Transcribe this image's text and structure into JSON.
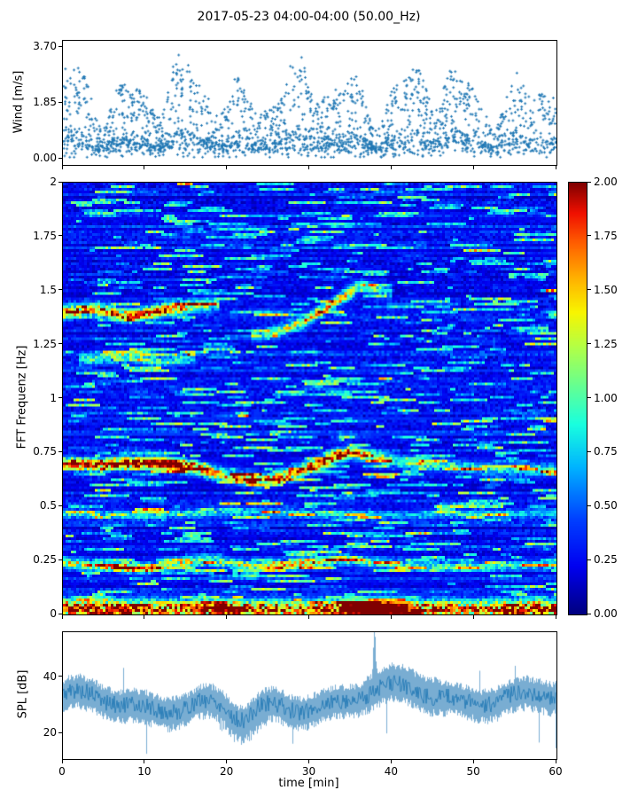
{
  "title": "2017-05-23 04:00-04:00 (50.00_Hz)",
  "chart_data": [
    {
      "type": "scatter",
      "name": "wind-speed",
      "ylabel": "Wind [m/s]",
      "ylim": [
        0,
        3.7
      ],
      "xlim": [
        0,
        60
      ],
      "yticks": [
        {
          "v": 0,
          "label": "0.00"
        },
        {
          "v": 1.85,
          "label": "1.85"
        },
        {
          "v": 3.7,
          "label": "3.70"
        }
      ],
      "marker": "star",
      "color": "#1f77b4",
      "n_points": 2300,
      "description": "Wind speed scatter 0-3.7 m/s over 60 min, bursty clusters up to ~3.6 m/s with calmer gaps, dense band below ~1 m/s"
    },
    {
      "type": "heatmap",
      "name": "fft-spectrogram",
      "ylabel": "FFT Frequenz [Hz]",
      "ylim": [
        0,
        2
      ],
      "xlim": [
        0,
        60
      ],
      "yticks": [
        {
          "v": 2,
          "label": "2"
        },
        {
          "v": 1.75,
          "label": "1.75"
        },
        {
          "v": 1.5,
          "label": "1.5"
        },
        {
          "v": 1.25,
          "label": "1.25"
        },
        {
          "v": 1,
          "label": "1"
        },
        {
          "v": 0.75,
          "label": "0.75"
        },
        {
          "v": 0.5,
          "label": "0.5"
        },
        {
          "v": 0.25,
          "label": "0.25"
        },
        {
          "v": 0,
          "label": "0"
        }
      ],
      "colorbar": {
        "vmin": 0,
        "vmax": 2,
        "colormap": "jet",
        "ticks": [
          {
            "v": 2,
            "label": "2.00"
          },
          {
            "v": 1.75,
            "label": "1.75"
          },
          {
            "v": 1.5,
            "label": "1.50"
          },
          {
            "v": 1.25,
            "label": "1.25"
          },
          {
            "v": 1,
            "label": "1.00"
          },
          {
            "v": 0.75,
            "label": "0.75"
          },
          {
            "v": 0.5,
            "label": "0.50"
          },
          {
            "v": 0.25,
            "label": "0.25"
          },
          {
            "v": 0,
            "label": "0.00"
          }
        ],
        "stops": [
          [
            0.0,
            "#000080"
          ],
          [
            0.11,
            "#0000f0"
          ],
          [
            0.22,
            "#0040ff"
          ],
          [
            0.34,
            "#00b3ff"
          ],
          [
            0.44,
            "#19ffdf"
          ],
          [
            0.53,
            "#66ff91"
          ],
          [
            0.62,
            "#b3ff46"
          ],
          [
            0.7,
            "#f8f500"
          ],
          [
            0.78,
            "#ffb000"
          ],
          [
            0.86,
            "#ff5f00"
          ],
          [
            0.93,
            "#f01000"
          ],
          [
            1.0,
            "#800000"
          ]
        ]
      },
      "background_level": 0.25,
      "streak_count": 1150,
      "bands": [
        {
          "name": "surface-low-band",
          "sigma": 0.03,
          "trange": [
            0,
            60
          ],
          "center": [
            [
              0,
              0.025
            ],
            [
              60,
              0.025
            ]
          ],
          "intensity": [
            [
              0,
              1.9
            ],
            [
              8,
              1.7
            ],
            [
              15,
              1.5
            ],
            [
              19,
              2.1
            ],
            [
              23,
              1.6
            ],
            [
              30,
              1.5
            ],
            [
              36,
              2.3
            ],
            [
              38,
              2.6
            ],
            [
              41,
              2.4
            ],
            [
              43,
              1.6
            ],
            [
              50,
              1.5
            ],
            [
              55,
              1.8
            ],
            [
              60,
              1.9
            ]
          ]
        },
        {
          "name": "main-band-0.7Hz",
          "sigma": 0.02,
          "trange": [
            0,
            60
          ],
          "center": [
            [
              0,
              0.7
            ],
            [
              4,
              0.69
            ],
            [
              8,
              0.7
            ],
            [
              12,
              0.7
            ],
            [
              16,
              0.68
            ],
            [
              20,
              0.64
            ],
            [
              24,
              0.62
            ],
            [
              27,
              0.64
            ],
            [
              30,
              0.68
            ],
            [
              33,
              0.73
            ],
            [
              35,
              0.75
            ],
            [
              38,
              0.73
            ],
            [
              42,
              0.7
            ],
            [
              46,
              0.69
            ],
            [
              52,
              0.67
            ],
            [
              60,
              0.67
            ]
          ],
          "intensity": [
            [
              0,
              1.9
            ],
            [
              6,
              1.8
            ],
            [
              10,
              2.0
            ],
            [
              14,
              2.1
            ],
            [
              17,
              1.6
            ],
            [
              20,
              1.2
            ],
            [
              24,
              1.3
            ],
            [
              28,
              1.5
            ],
            [
              31,
              1.7
            ],
            [
              34,
              1.8
            ],
            [
              37,
              1.2
            ],
            [
              40,
              0.9
            ],
            [
              45,
              0.8
            ],
            [
              50,
              0.7
            ],
            [
              55,
              0.7
            ],
            [
              60,
              0.8
            ]
          ]
        },
        {
          "name": "band-0.23Hz",
          "sigma": 0.016,
          "trange": [
            0,
            60
          ],
          "center": [
            [
              0,
              0.24
            ],
            [
              6,
              0.22
            ],
            [
              10,
              0.21
            ],
            [
              14,
              0.24
            ],
            [
              18,
              0.25
            ],
            [
              22,
              0.23
            ],
            [
              26,
              0.22
            ],
            [
              30,
              0.24
            ],
            [
              34,
              0.26
            ],
            [
              38,
              0.24
            ],
            [
              44,
              0.22
            ],
            [
              50,
              0.22
            ],
            [
              56,
              0.23
            ],
            [
              60,
              0.23
            ]
          ],
          "intensity": [
            [
              0,
              1.0
            ],
            [
              6,
              1.3
            ],
            [
              10,
              1.5
            ],
            [
              14,
              1.2
            ],
            [
              18,
              0.9
            ],
            [
              22,
              1.0
            ],
            [
              26,
              1.2
            ],
            [
              30,
              1.3
            ],
            [
              34,
              1.1
            ],
            [
              38,
              0.8
            ],
            [
              44,
              0.7
            ],
            [
              50,
              0.8
            ],
            [
              56,
              0.6
            ],
            [
              60,
              0.7
            ]
          ]
        },
        {
          "name": "band-1.4Hz-left",
          "sigma": 0.02,
          "trange": [
            0,
            19
          ],
          "center": [
            [
              0,
              1.4
            ],
            [
              4,
              1.42
            ],
            [
              8,
              1.38
            ],
            [
              12,
              1.41
            ],
            [
              16,
              1.43
            ],
            [
              19,
              1.44
            ]
          ],
          "intensity": [
            [
              0,
              1.5
            ],
            [
              4,
              1.2
            ],
            [
              8,
              1.5
            ],
            [
              12,
              1.6
            ],
            [
              16,
              1.1
            ],
            [
              19,
              0.8
            ]
          ]
        },
        {
          "name": "rising-trace-1.3-1.5Hz",
          "sigma": 0.018,
          "trange": [
            23,
            40
          ],
          "center": [
            [
              23,
              1.29
            ],
            [
              26,
              1.31
            ],
            [
              29,
              1.35
            ],
            [
              32,
              1.42
            ],
            [
              34,
              1.47
            ],
            [
              36,
              1.52
            ],
            [
              38,
              1.51
            ],
            [
              40,
              1.49
            ]
          ],
          "intensity": [
            [
              23,
              0.8
            ],
            [
              26,
              1.0
            ],
            [
              29,
              1.2
            ],
            [
              32,
              1.3
            ],
            [
              34,
              1.4
            ],
            [
              36,
              1.2
            ],
            [
              38,
              0.9
            ],
            [
              40,
              0.6
            ]
          ]
        },
        {
          "name": "faint-band-1.2Hz-left",
          "sigma": 0.018,
          "trange": [
            2,
            16
          ],
          "center": [
            [
              2,
              1.18
            ],
            [
              8,
              1.2
            ],
            [
              12,
              1.17
            ],
            [
              16,
              1.19
            ]
          ],
          "intensity": [
            [
              2,
              0.6
            ],
            [
              6,
              0.9
            ],
            [
              10,
              0.8
            ],
            [
              14,
              0.7
            ],
            [
              16,
              0.5
            ]
          ]
        },
        {
          "name": "faint-band-0.47Hz",
          "sigma": 0.015,
          "trange": [
            0,
            60
          ],
          "center": [
            [
              0,
              0.47
            ],
            [
              10,
              0.46
            ],
            [
              20,
              0.48
            ],
            [
              30,
              0.47
            ],
            [
              40,
              0.46
            ],
            [
              50,
              0.47
            ],
            [
              60,
              0.47
            ]
          ],
          "intensity": [
            [
              0,
              0.6
            ],
            [
              8,
              0.5
            ],
            [
              16,
              0.7
            ],
            [
              24,
              0.5
            ],
            [
              32,
              0.6
            ],
            [
              40,
              0.4
            ],
            [
              50,
              0.5
            ],
            [
              60,
              0.4
            ]
          ]
        }
      ]
    },
    {
      "type": "line",
      "name": "spl",
      "ylabel": "SPL [dB]",
      "xlabel": "time [min]",
      "ylim": [
        11,
        56
      ],
      "xlim": [
        0,
        60
      ],
      "yticks": [
        {
          "v": 40,
          "label": "40"
        },
        {
          "v": 20,
          "label": "20"
        }
      ],
      "xticks": [
        "0",
        "10",
        "20",
        "30",
        "40",
        "50",
        "60"
      ],
      "color": "#1f77b4",
      "baseline": 31.5,
      "noise_amplitude": 6,
      "dip": {
        "t": 21.8,
        "depth": 6.5,
        "width": 2.5
      },
      "spike": {
        "t": 37.9,
        "peak": 54
      },
      "description": "Noisy SPL trace around 30-35 dB, dip to ~20 dB near 21-23 min, sharp spike to ~54 dB at ~38 min"
    }
  ]
}
